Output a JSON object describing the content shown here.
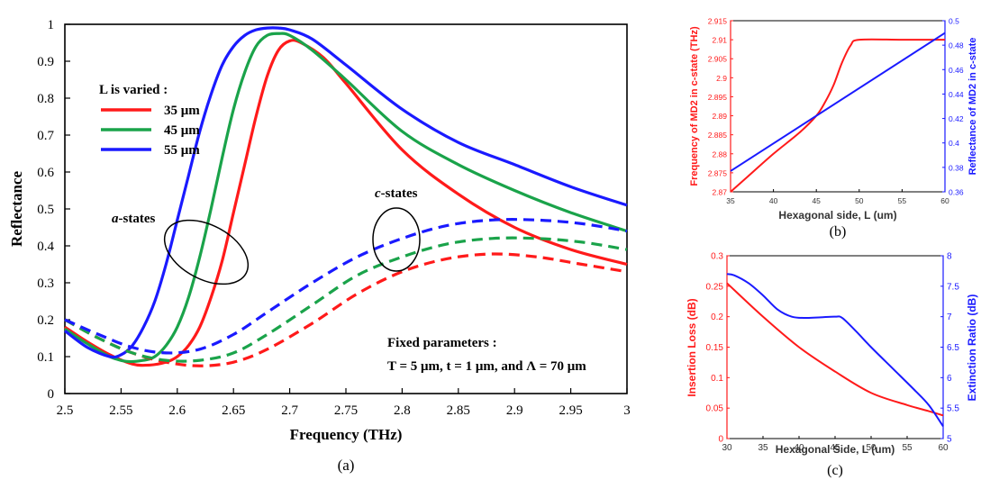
{
  "chart_data": [
    {
      "id": "a",
      "type": "line",
      "panel_label": "(a)",
      "xlabel": "Frequency (THz)",
      "ylabel": "Reflectance",
      "xlim": [
        2.5,
        3.0
      ],
      "ylim": [
        0,
        1.0
      ],
      "xticks": [
        "2.5",
        "2.55",
        "2.6",
        "2.65",
        "2.7",
        "2.75",
        "2.8",
        "2.85",
        "2.9",
        "2.95",
        "3"
      ],
      "yticks": [
        "0",
        "0.1",
        "0.2",
        "0.3",
        "0.4",
        "0.5",
        "0.6",
        "0.7",
        "0.8",
        "0.9",
        "1"
      ],
      "grid": false,
      "legend_title": "L is varied :",
      "legend_position": "top-left",
      "series": [
        {
          "name": "35 μm",
          "state": "a",
          "color": "#ff1a1a",
          "style": "solid",
          "x": [
            2.5,
            2.52,
            2.54,
            2.56,
            2.575,
            2.59,
            2.6,
            2.61,
            2.62,
            2.63,
            2.64,
            2.65,
            2.66,
            2.67,
            2.68,
            2.69,
            2.7,
            2.71,
            2.73,
            2.75,
            2.8,
            2.85,
            2.9,
            2.95,
            3.0
          ],
          "y": [
            0.18,
            0.14,
            0.105,
            0.08,
            0.077,
            0.085,
            0.1,
            0.13,
            0.18,
            0.26,
            0.36,
            0.49,
            0.62,
            0.75,
            0.86,
            0.93,
            0.955,
            0.95,
            0.91,
            0.84,
            0.66,
            0.54,
            0.45,
            0.39,
            0.35
          ]
        },
        {
          "name": "45 μm",
          "state": "a",
          "color": "#1aa34a",
          "style": "solid",
          "x": [
            2.5,
            2.52,
            2.54,
            2.555,
            2.57,
            2.58,
            2.59,
            2.6,
            2.61,
            2.62,
            2.63,
            2.64,
            2.65,
            2.66,
            2.67,
            2.68,
            2.69,
            2.7,
            2.72,
            2.75,
            2.8,
            2.85,
            2.9,
            2.95,
            3.0
          ],
          "y": [
            0.175,
            0.135,
            0.1,
            0.087,
            0.09,
            0.1,
            0.13,
            0.18,
            0.26,
            0.37,
            0.5,
            0.64,
            0.77,
            0.87,
            0.94,
            0.97,
            0.975,
            0.97,
            0.93,
            0.85,
            0.71,
            0.62,
            0.55,
            0.49,
            0.44
          ]
        },
        {
          "name": "55 μm",
          "state": "a",
          "color": "#1a1aff",
          "style": "solid",
          "x": [
            2.5,
            2.52,
            2.54,
            2.55,
            2.56,
            2.57,
            2.58,
            2.59,
            2.6,
            2.61,
            2.62,
            2.63,
            2.64,
            2.65,
            2.66,
            2.67,
            2.68,
            2.69,
            2.7,
            2.72,
            2.75,
            2.8,
            2.85,
            2.9,
            2.95,
            3.0
          ],
          "y": [
            0.17,
            0.125,
            0.1,
            0.105,
            0.13,
            0.18,
            0.25,
            0.35,
            0.47,
            0.59,
            0.71,
            0.81,
            0.89,
            0.94,
            0.97,
            0.985,
            0.99,
            0.99,
            0.985,
            0.96,
            0.89,
            0.77,
            0.68,
            0.62,
            0.56,
            0.51
          ]
        },
        {
          "name": "35 μm",
          "state": "c",
          "color": "#ff1a1a",
          "style": "dashed",
          "x": [
            2.5,
            2.53,
            2.56,
            2.59,
            2.62,
            2.65,
            2.68,
            2.72,
            2.76,
            2.8,
            2.84,
            2.88,
            2.92,
            2.96,
            3.0
          ],
          "y": [
            0.2,
            0.15,
            0.11,
            0.085,
            0.075,
            0.085,
            0.12,
            0.19,
            0.27,
            0.33,
            0.365,
            0.378,
            0.37,
            0.35,
            0.33
          ]
        },
        {
          "name": "45 μm",
          "state": "c",
          "color": "#1aa34a",
          "style": "dashed",
          "x": [
            2.5,
            2.53,
            2.56,
            2.59,
            2.62,
            2.65,
            2.68,
            2.72,
            2.76,
            2.8,
            2.84,
            2.88,
            2.92,
            2.96,
            3.0
          ],
          "y": [
            0.2,
            0.15,
            0.11,
            0.09,
            0.09,
            0.11,
            0.16,
            0.24,
            0.32,
            0.37,
            0.405,
            0.42,
            0.42,
            0.41,
            0.39
          ]
        },
        {
          "name": "55 μm",
          "state": "c",
          "color": "#1a1aff",
          "style": "dashed",
          "x": [
            2.5,
            2.53,
            2.56,
            2.59,
            2.62,
            2.65,
            2.68,
            2.72,
            2.76,
            2.8,
            2.84,
            2.88,
            2.92,
            2.96,
            3.0
          ],
          "y": [
            0.2,
            0.16,
            0.125,
            0.11,
            0.12,
            0.16,
            0.22,
            0.3,
            0.37,
            0.42,
            0.455,
            0.47,
            0.47,
            0.46,
            0.44
          ]
        }
      ],
      "annotations": {
        "a_states_prefix": "a",
        "a_states_suffix": "-states",
        "c_states_prefix": "c",
        "c_states_suffix": "-states",
        "fixed_title": "Fixed parameters :",
        "fixed_values": "T = 5 μm, t = 1 μm, and Λ = 70 μm"
      }
    },
    {
      "id": "b",
      "type": "line",
      "panel_label": "(b)",
      "xlabel": "Hexagonal side, L (um)",
      "ylabel_left": "Frequency of MD2 in c-state (THz)",
      "ylabel_right": "Reflectance of MD2 in c-state",
      "xlim": [
        35,
        60
      ],
      "ylim_left": [
        2.87,
        2.915
      ],
      "ylim_right": [
        0.36,
        0.5
      ],
      "xticks": [
        "35",
        "40",
        "45",
        "50",
        "55",
        "60"
      ],
      "yticks_left": [
        "2.87",
        "2.875",
        "2.88",
        "2.885",
        "2.89",
        "2.895",
        "2.9",
        "2.905",
        "2.91",
        "2.915"
      ],
      "yticks_right": [
        "0.36",
        "0.38",
        "0.4",
        "0.42",
        "0.44",
        "0.46",
        "0.48",
        "0.5"
      ],
      "left_color": "#ff1a1a",
      "right_color": "#1a1aff",
      "series": [
        {
          "name": "",
          "axis": "left",
          "color": "#ff1a1a",
          "x": [
            35,
            37,
            40,
            43,
            45,
            46,
            47,
            48,
            49,
            50,
            55,
            60
          ],
          "y": [
            2.87,
            2.874,
            2.88,
            2.8855,
            2.89,
            2.8935,
            2.898,
            2.904,
            2.9085,
            2.91,
            2.91,
            2.91
          ]
        },
        {
          "name": "",
          "axis": "right",
          "color": "#1a1aff",
          "x": [
            35,
            60
          ],
          "y": [
            0.377,
            0.49
          ]
        }
      ]
    },
    {
      "id": "c",
      "type": "line",
      "panel_label": "(c)",
      "xlabel": "Hexagonal Side, L (um)",
      "ylabel_left": "Insertion Loss (dB)",
      "ylabel_right": "Extinction Ratio (dB)",
      "xlim": [
        30,
        60
      ],
      "ylim_left": [
        0,
        0.3
      ],
      "ylim_right": [
        5,
        8
      ],
      "xticks": [
        "30",
        "35",
        "40",
        "45",
        "50",
        "55",
        "60"
      ],
      "yticks_left": [
        "0",
        "0.05",
        "0.1",
        "0.15",
        "0.2",
        "0.25",
        "0.3"
      ],
      "yticks_right": [
        "5",
        "5.5",
        "6",
        "6.5",
        "7",
        "7.5",
        "8"
      ],
      "left_color": "#ff1a1a",
      "right_color": "#1a1aff",
      "series": [
        {
          "name": "",
          "axis": "left",
          "color": "#ff1a1a",
          "x": [
            30,
            35,
            40,
            45,
            50,
            55,
            58,
            60
          ],
          "y": [
            0.255,
            0.2,
            0.15,
            0.11,
            0.075,
            0.055,
            0.045,
            0.038
          ]
        },
        {
          "name": "",
          "axis": "right",
          "color": "#1a1aff",
          "x": [
            30,
            31,
            33,
            35,
            37,
            39,
            41,
            43,
            45,
            46,
            48,
            50,
            53,
            56,
            58,
            60
          ],
          "y": [
            7.7,
            7.68,
            7.55,
            7.35,
            7.12,
            7.0,
            6.98,
            6.99,
            7.0,
            6.98,
            6.75,
            6.5,
            6.15,
            5.8,
            5.55,
            5.2
          ]
        }
      ]
    }
  ]
}
